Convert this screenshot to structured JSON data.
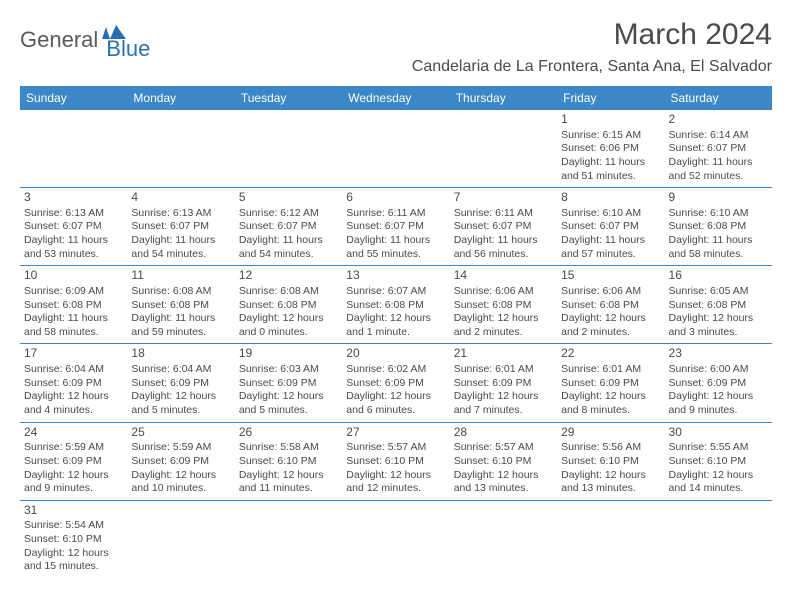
{
  "logo": {
    "general": "General",
    "blue": "Blue"
  },
  "title": "March 2024",
  "subtitle": "Candelaria de La Frontera, Santa Ana, El Salvador",
  "colors": {
    "header_bg": "#3b87c8",
    "header_fg": "#ffffff",
    "text": "#4a4a4a",
    "rule": "#3b87c8",
    "logo_gray": "#5a5a5a",
    "logo_blue": "#2a6fb0"
  },
  "weekdays": [
    "Sunday",
    "Monday",
    "Tuesday",
    "Wednesday",
    "Thursday",
    "Friday",
    "Saturday"
  ],
  "weeks": [
    [
      null,
      null,
      null,
      null,
      null,
      {
        "n": "1",
        "sr": "6:15 AM",
        "ss": "6:06 PM",
        "dl": "11 hours and 51 minutes."
      },
      {
        "n": "2",
        "sr": "6:14 AM",
        "ss": "6:07 PM",
        "dl": "11 hours and 52 minutes."
      }
    ],
    [
      {
        "n": "3",
        "sr": "6:13 AM",
        "ss": "6:07 PM",
        "dl": "11 hours and 53 minutes."
      },
      {
        "n": "4",
        "sr": "6:13 AM",
        "ss": "6:07 PM",
        "dl": "11 hours and 54 minutes."
      },
      {
        "n": "5",
        "sr": "6:12 AM",
        "ss": "6:07 PM",
        "dl": "11 hours and 54 minutes."
      },
      {
        "n": "6",
        "sr": "6:11 AM",
        "ss": "6:07 PM",
        "dl": "11 hours and 55 minutes."
      },
      {
        "n": "7",
        "sr": "6:11 AM",
        "ss": "6:07 PM",
        "dl": "11 hours and 56 minutes."
      },
      {
        "n": "8",
        "sr": "6:10 AM",
        "ss": "6:07 PM",
        "dl": "11 hours and 57 minutes."
      },
      {
        "n": "9",
        "sr": "6:10 AM",
        "ss": "6:08 PM",
        "dl": "11 hours and 58 minutes."
      }
    ],
    [
      {
        "n": "10",
        "sr": "6:09 AM",
        "ss": "6:08 PM",
        "dl": "11 hours and 58 minutes."
      },
      {
        "n": "11",
        "sr": "6:08 AM",
        "ss": "6:08 PM",
        "dl": "11 hours and 59 minutes."
      },
      {
        "n": "12",
        "sr": "6:08 AM",
        "ss": "6:08 PM",
        "dl": "12 hours and 0 minutes."
      },
      {
        "n": "13",
        "sr": "6:07 AM",
        "ss": "6:08 PM",
        "dl": "12 hours and 1 minute."
      },
      {
        "n": "14",
        "sr": "6:06 AM",
        "ss": "6:08 PM",
        "dl": "12 hours and 2 minutes."
      },
      {
        "n": "15",
        "sr": "6:06 AM",
        "ss": "6:08 PM",
        "dl": "12 hours and 2 minutes."
      },
      {
        "n": "16",
        "sr": "6:05 AM",
        "ss": "6:08 PM",
        "dl": "12 hours and 3 minutes."
      }
    ],
    [
      {
        "n": "17",
        "sr": "6:04 AM",
        "ss": "6:09 PM",
        "dl": "12 hours and 4 minutes."
      },
      {
        "n": "18",
        "sr": "6:04 AM",
        "ss": "6:09 PM",
        "dl": "12 hours and 5 minutes."
      },
      {
        "n": "19",
        "sr": "6:03 AM",
        "ss": "6:09 PM",
        "dl": "12 hours and 5 minutes."
      },
      {
        "n": "20",
        "sr": "6:02 AM",
        "ss": "6:09 PM",
        "dl": "12 hours and 6 minutes."
      },
      {
        "n": "21",
        "sr": "6:01 AM",
        "ss": "6:09 PM",
        "dl": "12 hours and 7 minutes."
      },
      {
        "n": "22",
        "sr": "6:01 AM",
        "ss": "6:09 PM",
        "dl": "12 hours and 8 minutes."
      },
      {
        "n": "23",
        "sr": "6:00 AM",
        "ss": "6:09 PM",
        "dl": "12 hours and 9 minutes."
      }
    ],
    [
      {
        "n": "24",
        "sr": "5:59 AM",
        "ss": "6:09 PM",
        "dl": "12 hours and 9 minutes."
      },
      {
        "n": "25",
        "sr": "5:59 AM",
        "ss": "6:09 PM",
        "dl": "12 hours and 10 minutes."
      },
      {
        "n": "26",
        "sr": "5:58 AM",
        "ss": "6:10 PM",
        "dl": "12 hours and 11 minutes."
      },
      {
        "n": "27",
        "sr": "5:57 AM",
        "ss": "6:10 PM",
        "dl": "12 hours and 12 minutes."
      },
      {
        "n": "28",
        "sr": "5:57 AM",
        "ss": "6:10 PM",
        "dl": "12 hours and 13 minutes."
      },
      {
        "n": "29",
        "sr": "5:56 AM",
        "ss": "6:10 PM",
        "dl": "12 hours and 13 minutes."
      },
      {
        "n": "30",
        "sr": "5:55 AM",
        "ss": "6:10 PM",
        "dl": "12 hours and 14 minutes."
      }
    ],
    [
      {
        "n": "31",
        "sr": "5:54 AM",
        "ss": "6:10 PM",
        "dl": "12 hours and 15 minutes."
      },
      null,
      null,
      null,
      null,
      null,
      null
    ]
  ],
  "labels": {
    "sunrise": "Sunrise:",
    "sunset": "Sunset:",
    "daylight": "Daylight:"
  }
}
